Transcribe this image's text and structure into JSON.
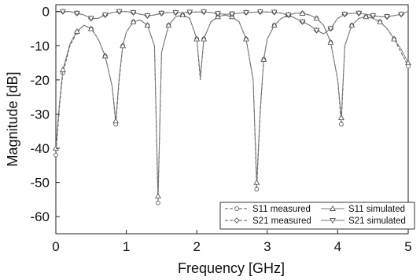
{
  "chart_data": {
    "type": "line",
    "xlabel": "Frequency [GHz]",
    "ylabel": "Magnitude [dB]",
    "xlim": [
      0,
      5
    ],
    "ylim": [
      -65,
      2
    ],
    "x_ticks": [
      "0",
      "1",
      "2",
      "3",
      "4",
      "5"
    ],
    "y_ticks": [
      "0",
      "-10",
      "-20",
      "-30",
      "-40",
      "-50",
      "-60"
    ],
    "x_tick_values": [
      0,
      1,
      2,
      3,
      4,
      5
    ],
    "y_tick_values": [
      0,
      -10,
      -20,
      -30,
      -40,
      -50,
      -60
    ],
    "grid": false,
    "legend_position": "bottom-right",
    "series": [
      {
        "name": "S11 measured",
        "marker": "circle",
        "line_style": "dashed",
        "color": "#555555",
        "x": [
          0.0,
          0.05,
          0.1,
          0.2,
          0.3,
          0.4,
          0.5,
          0.6,
          0.7,
          0.8,
          0.85,
          0.9,
          0.95,
          1.0,
          1.1,
          1.2,
          1.3,
          1.4,
          1.45,
          1.5,
          1.6,
          1.7,
          1.8,
          1.9,
          2.0,
          2.05,
          2.1,
          2.2,
          2.3,
          2.4,
          2.5,
          2.6,
          2.7,
          2.8,
          2.85,
          2.9,
          2.95,
          3.0,
          3.1,
          3.2,
          3.3,
          3.4,
          3.5,
          3.6,
          3.7,
          3.8,
          3.9,
          4.0,
          4.05,
          4.1,
          4.2,
          4.3,
          4.4,
          4.5,
          4.6,
          4.7,
          4.8,
          4.9,
          5.0
        ],
        "y": [
          -42,
          -28,
          -18,
          -10,
          -6,
          -4,
          -5,
          -8,
          -13,
          -22,
          -33,
          -20,
          -10,
          -6,
          -3,
          -2.5,
          -4,
          -10,
          -56,
          -12,
          -4,
          -1.5,
          -1,
          -2,
          -8,
          -20,
          -8,
          -3,
          -1.5,
          -1,
          -1.5,
          -3,
          -8,
          -20,
          -52,
          -30,
          -14,
          -8,
          -4,
          -2,
          -1,
          -0.5,
          -0.5,
          -1,
          -2,
          -4,
          -9,
          -20,
          -33,
          -10,
          -4,
          -2,
          -1.5,
          -2,
          -3,
          -5,
          -8,
          -12,
          -16
        ]
      },
      {
        "name": "S21 measured",
        "marker": "diamond",
        "line_style": "dashed",
        "color": "#555555",
        "x": [
          0.0,
          0.1,
          0.2,
          0.3,
          0.4,
          0.5,
          0.6,
          0.7,
          0.8,
          0.9,
          1.0,
          1.1,
          1.2,
          1.3,
          1.4,
          1.5,
          1.6,
          1.7,
          1.8,
          1.9,
          2.0,
          2.1,
          2.2,
          2.3,
          2.4,
          2.5,
          2.6,
          2.7,
          2.8,
          2.9,
          3.0,
          3.1,
          3.2,
          3.3,
          3.4,
          3.5,
          3.6,
          3.7,
          3.8,
          3.9,
          4.0,
          4.1,
          4.2,
          4.3,
          4.4,
          4.5,
          4.6,
          4.7,
          4.8,
          4.9,
          5.0
        ],
        "y": [
          0,
          0,
          0,
          -0.5,
          -1,
          -2,
          -2,
          -1,
          -0.3,
          0,
          0,
          -0.3,
          -0.8,
          -1.2,
          -1,
          -0.5,
          -0.3,
          -0.3,
          -0.3,
          -0.2,
          -0.1,
          -0.1,
          -0.3,
          -0.6,
          -0.8,
          -0.7,
          -0.5,
          -0.3,
          -0.2,
          -0.1,
          -0.1,
          -0.2,
          -0.5,
          -1,
          -2,
          -3,
          -4,
          -5.5,
          -6.5,
          -5,
          -2,
          -0.8,
          -0.5,
          -0.5,
          -0.8,
          -1.2,
          -1.5,
          -1.5,
          -1.2,
          -0.8,
          0
        ]
      },
      {
        "name": "S11 simulated",
        "marker": "triangle-up",
        "line_style": "solid",
        "color": "#777777",
        "x": [
          0.0,
          0.05,
          0.1,
          0.2,
          0.3,
          0.4,
          0.5,
          0.6,
          0.7,
          0.8,
          0.85,
          0.9,
          0.95,
          1.0,
          1.1,
          1.2,
          1.3,
          1.4,
          1.45,
          1.5,
          1.6,
          1.7,
          1.8,
          1.9,
          2.0,
          2.05,
          2.1,
          2.2,
          2.3,
          2.4,
          2.5,
          2.6,
          2.7,
          2.8,
          2.85,
          2.9,
          2.95,
          3.0,
          3.1,
          3.2,
          3.3,
          3.4,
          3.5,
          3.6,
          3.7,
          3.8,
          3.9,
          4.0,
          4.05,
          4.1,
          4.2,
          4.3,
          4.4,
          4.5,
          4.6,
          4.7,
          4.8,
          4.9,
          5.0
        ],
        "y": [
          -40,
          -27,
          -17,
          -9.5,
          -5.8,
          -4,
          -5,
          -8,
          -13,
          -22,
          -32,
          -19,
          -10,
          -6,
          -3,
          -2.5,
          -4,
          -10,
          -54,
          -12,
          -4,
          -1.5,
          -1,
          -2,
          -8,
          -19,
          -8,
          -3,
          -1.5,
          -1,
          -1.5,
          -3,
          -8,
          -20,
          -50,
          -29,
          -14,
          -8,
          -4,
          -2,
          -1,
          -0.5,
          -0.5,
          -1,
          -2,
          -4,
          -9,
          -20,
          -31,
          -10,
          -4,
          -2,
          -1.5,
          -2,
          -3,
          -5,
          -8,
          -11,
          -15
        ]
      },
      {
        "name": "S21 simulated",
        "marker": "triangle-down",
        "line_style": "solid",
        "color": "#777777",
        "x": [
          0.0,
          0.1,
          0.2,
          0.3,
          0.4,
          0.5,
          0.6,
          0.7,
          0.8,
          0.9,
          1.0,
          1.1,
          1.2,
          1.3,
          1.4,
          1.5,
          1.6,
          1.7,
          1.8,
          1.9,
          2.0,
          2.1,
          2.2,
          2.3,
          2.4,
          2.5,
          2.6,
          2.7,
          2.8,
          2.9,
          3.0,
          3.1,
          3.2,
          3.3,
          3.4,
          3.5,
          3.6,
          3.7,
          3.8,
          3.9,
          4.0,
          4.1,
          4.2,
          4.3,
          4.4,
          4.5,
          4.6,
          4.7,
          4.8,
          4.9,
          5.0
        ],
        "y": [
          0,
          0,
          0,
          -0.5,
          -1,
          -2,
          -2,
          -1,
          -0.3,
          0,
          0,
          -0.3,
          -0.8,
          -1.2,
          -1,
          -0.5,
          -0.3,
          -0.3,
          -0.3,
          -0.2,
          -0.1,
          -0.1,
          -0.3,
          -0.6,
          -0.8,
          -0.7,
          -0.5,
          -0.3,
          -0.2,
          -0.1,
          -0.1,
          -0.2,
          -0.5,
          -1,
          -2,
          -3,
          -4,
          -5.5,
          -6.5,
          -5,
          -2,
          -0.8,
          -0.5,
          -0.5,
          -0.8,
          -1.2,
          -1.5,
          -1.5,
          -1.2,
          -0.8,
          0
        ]
      }
    ]
  }
}
